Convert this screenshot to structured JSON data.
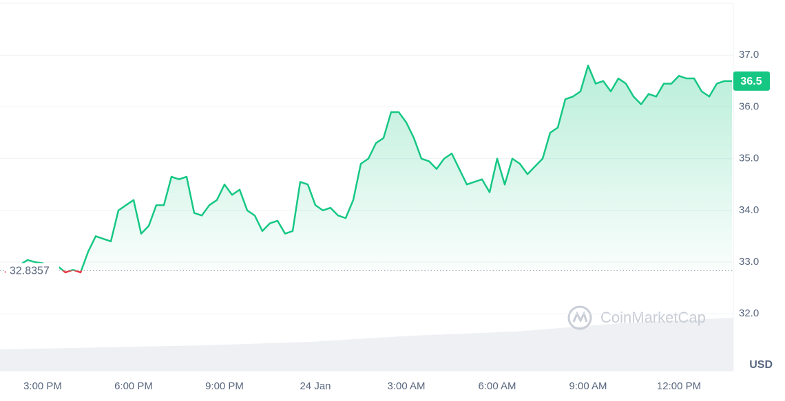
{
  "chart_data": {
    "type": "line",
    "series": [
      {
        "color": "#16c784",
        "values": [
          32.8,
          32.9,
          32.95,
          33.04,
          33.0,
          32.98,
          32.9,
          32.92,
          32.8,
          32.85,
          32.8,
          33.2,
          33.5,
          33.45,
          33.4,
          34.0,
          34.1,
          34.2,
          33.55,
          33.7,
          34.1,
          34.1,
          34.65,
          34.6,
          34.65,
          33.95,
          33.9,
          34.1,
          34.2,
          34.5,
          34.3,
          34.4,
          34.0,
          33.9,
          33.6,
          33.75,
          33.8,
          33.55,
          33.6,
          34.55,
          34.5,
          34.1,
          34.0,
          34.05,
          33.9,
          33.85,
          34.2,
          34.9,
          35.0,
          35.3,
          35.4,
          35.9,
          35.9,
          35.7,
          35.4,
          35.0,
          34.95,
          34.8,
          35.0,
          35.1,
          34.8,
          34.5,
          34.55,
          34.6,
          34.35,
          35.0,
          34.5,
          35.0,
          34.9,
          34.7,
          34.85,
          35.0,
          35.5,
          35.6,
          36.15,
          36.2,
          36.3,
          36.8,
          36.45,
          36.5,
          36.3,
          36.55,
          36.45,
          36.2,
          36.05,
          36.25,
          36.2,
          36.45,
          36.45,
          36.6,
          36.55,
          36.55,
          36.3,
          36.2,
          36.45,
          36.5,
          36.5
        ]
      }
    ],
    "down_color": "#ea3943",
    "baseline": 32.8357,
    "price_label": 36.5,
    "ylim": [
      30.9,
      38.0
    ],
    "yticks": [
      {
        "value": 32,
        "label": "32.0"
      },
      {
        "value": 33,
        "label": "33.0"
      },
      {
        "value": 34,
        "label": "34.0"
      },
      {
        "value": 35,
        "label": "35.0"
      },
      {
        "value": 36,
        "label": "36.0"
      },
      {
        "value": 37,
        "label": "37.0"
      }
    ],
    "xlim": [
      -0.5,
      96.2
    ],
    "xticks": [
      {
        "value": 5,
        "label": "3:00 PM"
      },
      {
        "value": 17,
        "label": "6:00 PM"
      },
      {
        "value": 29,
        "label": "9:00 PM"
      },
      {
        "value": 41,
        "label": "24 Jan"
      },
      {
        "value": 53,
        "label": "3:00 AM"
      },
      {
        "value": 65,
        "label": "6:00 AM"
      },
      {
        "value": 77,
        "label": "9:00 AM"
      },
      {
        "value": 89,
        "label": "12:00 PM"
      }
    ],
    "y_axis_label": "USD",
    "watermark": "CoinMarketCap",
    "grid": true
  }
}
